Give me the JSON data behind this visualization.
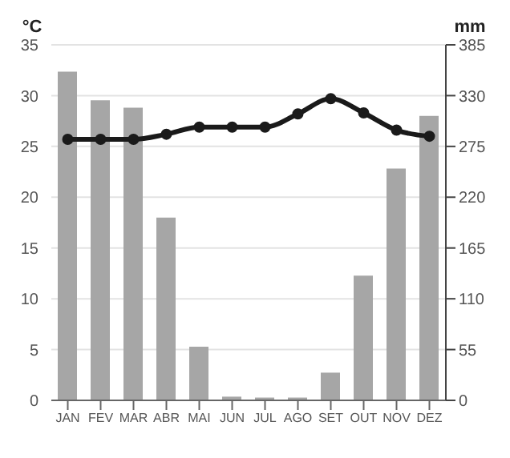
{
  "chart_data": {
    "type": "bar",
    "ylabel": "°C",
    "y2label": "mm",
    "categories": [
      "JAN",
      "FEV",
      "MAR",
      "ABR",
      "MAI",
      "JUN",
      "JUL",
      "AGO",
      "SET",
      "OUT",
      "NOV",
      "DEZ"
    ],
    "series": [
      {
        "axis": "y2",
        "color": "#a6a6a6",
        "values": [
          356,
          325,
          317,
          198,
          58,
          4,
          3,
          3,
          30,
          135,
          251,
          308
        ]
      },
      {
        "type": "line",
        "color": "#1a1a1a",
        "marker": "circle",
        "values": [
          25.7,
          25.7,
          25.7,
          26.2,
          26.9,
          26.9,
          26.9,
          28.2,
          29.7,
          28.3,
          26.6,
          26.0
        ]
      }
    ],
    "ylim": [
      0,
      35
    ],
    "yticks": [
      0,
      5,
      10,
      15,
      20,
      25,
      30,
      35
    ],
    "y2lim": [
      0,
      385
    ],
    "y2ticks": [
      0,
      55,
      110,
      165,
      220,
      275,
      330,
      385
    ],
    "grid": "y"
  }
}
